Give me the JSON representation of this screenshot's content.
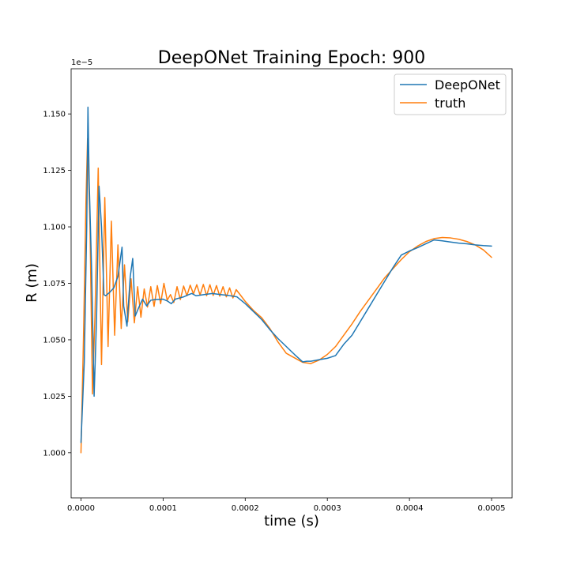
{
  "chart_data": {
    "type": "line",
    "title": "DeepONet Training Epoch: 900",
    "xlabel": "time (s)",
    "ylabel": "R (m)",
    "y_offset_label": "1e−5",
    "xlim": [
      -1.2e-05,
      0.000525
    ],
    "ylim": [
      0.98,
      1.17
    ],
    "x_ticks": [
      0,
      0.0001,
      0.0002,
      0.0003,
      0.0004,
      0.0005
    ],
    "x_tick_labels": [
      "0.0000",
      "0.0001",
      "0.0002",
      "0.0003",
      "0.0004",
      "0.0005"
    ],
    "y_ticks": [
      1.0,
      1.025,
      1.05,
      1.075,
      1.1,
      1.125,
      1.15
    ],
    "y_tick_labels": [
      "1.000",
      "1.025",
      "1.050",
      "1.075",
      "1.100",
      "1.125",
      "1.150"
    ],
    "grid": false,
    "legend_position": "top-right",
    "series": [
      {
        "name": "DeepONet",
        "color": "#1f77b4",
        "x": [
          0,
          4e-06,
          7e-06,
          8.5e-06,
          1e-05,
          1.3e-05,
          1.6e-05,
          1.9e-05,
          2.2e-05,
          2.5e-05,
          2.8e-05,
          3e-05,
          3.5e-05,
          4e-05,
          4.5e-05,
          5e-05,
          5.2e-05,
          5.6e-05,
          6e-05,
          6.3e-05,
          6.6e-05,
          7e-05,
          7.5e-05,
          8e-05,
          8.5e-05,
          9e-05,
          0.0001,
          0.000105,
          0.00011,
          0.000115,
          0.00012,
          0.000125,
          0.00013,
          0.000135,
          0.00014,
          0.00015,
          0.00016,
          0.00017,
          0.00018,
          0.00019,
          0.0002,
          0.00021,
          0.00022,
          0.00023,
          0.00024,
          0.00025,
          0.00026,
          0.00027,
          0.000275,
          0.00028,
          0.00029,
          0.0003,
          0.00031,
          0.00032,
          0.00033,
          0.00034,
          0.00035,
          0.00036,
          0.00037,
          0.00038,
          0.00039,
          0.0004,
          0.00041,
          0.00042,
          0.00043,
          0.00044,
          0.00045,
          0.00046,
          0.00047,
          0.00048,
          0.00049,
          0.0005
        ],
        "values": [
          1.0045,
          1.04,
          1.1,
          1.153,
          1.12,
          1.08,
          1.025,
          1.06,
          1.118,
          1.1,
          1.07,
          1.0695,
          1.071,
          1.073,
          1.078,
          1.091,
          1.065,
          1.056,
          1.078,
          1.086,
          1.0605,
          1.064,
          1.068,
          1.065,
          1.0675,
          1.0678,
          1.068,
          1.0672,
          1.066,
          1.068,
          1.0685,
          1.069,
          1.0698,
          1.0705,
          1.0695,
          1.07,
          1.0705,
          1.07,
          1.0696,
          1.069,
          1.066,
          1.0625,
          1.059,
          1.0545,
          1.0505,
          1.047,
          1.0435,
          1.0402,
          1.0405,
          1.0405,
          1.0412,
          1.0418,
          1.043,
          1.048,
          1.052,
          1.058,
          1.064,
          1.07,
          1.076,
          1.082,
          1.0875,
          1.0893,
          1.0908,
          1.0925,
          1.0942,
          1.0938,
          1.0933,
          1.0928,
          1.0925,
          1.092,
          1.0917,
          1.0915
        ]
      },
      {
        "name": "truth",
        "color": "#ff7f0e",
        "x": [
          0,
          3e-06,
          6e-06,
          8e-06,
          1.1e-05,
          1.4e-05,
          1.7e-05,
          2.1e-05,
          2.5e-05,
          2.9e-05,
          3.3e-05,
          3.7e-05,
          4.1e-05,
          4.5e-05,
          4.9e-05,
          5.3e-05,
          5.7e-05,
          6.1e-05,
          6.5e-05,
          6.9e-05,
          7.3e-05,
          7.7e-05,
          8.1e-05,
          8.5e-05,
          8.9e-05,
          9.3e-05,
          9.7e-05,
          0.000101,
          0.000105,
          0.000109,
          0.000113,
          0.000117,
          0.000121,
          0.000125,
          0.000129,
          0.000133,
          0.000137,
          0.000141,
          0.000145,
          0.000149,
          0.000153,
          0.000157,
          0.000161,
          0.000165,
          0.000169,
          0.000173,
          0.000177,
          0.000181,
          0.000185,
          0.000189,
          0.000195,
          0.0002,
          0.00021,
          0.00022,
          0.00023,
          0.00024,
          0.00025,
          0.00026,
          0.00027,
          0.00028,
          0.00029,
          0.0003,
          0.00031,
          0.00032,
          0.00033,
          0.00034,
          0.00035,
          0.00036,
          0.00037,
          0.00038,
          0.00039,
          0.0004,
          0.00041,
          0.00042,
          0.00043,
          0.00044,
          0.00045,
          0.00046,
          0.00047,
          0.00048,
          0.00049,
          0.0005
        ],
        "values": [
          1.0,
          1.05,
          1.11,
          1.139,
          1.1,
          1.026,
          1.06,
          1.126,
          1.039,
          1.113,
          1.047,
          1.1025,
          1.052,
          1.092,
          1.055,
          1.0832,
          1.058,
          1.077,
          1.0575,
          1.0735,
          1.06,
          1.0725,
          1.0645,
          1.0735,
          1.0648,
          1.074,
          1.066,
          1.075,
          1.0675,
          1.07,
          1.0665,
          1.0735,
          1.0678,
          1.0738,
          1.0695,
          1.0742,
          1.0703,
          1.0744,
          1.0698,
          1.0745,
          1.0695,
          1.0744,
          1.0696,
          1.074,
          1.0693,
          1.0735,
          1.069,
          1.073,
          1.0685,
          1.0722,
          1.0694,
          1.067,
          1.063,
          1.0598,
          1.055,
          1.049,
          1.044,
          1.042,
          1.04,
          1.0395,
          1.041,
          1.0435,
          1.047,
          1.052,
          1.057,
          1.0625,
          1.0675,
          1.0725,
          1.0775,
          1.0815,
          1.0855,
          1.089,
          1.0915,
          1.0935,
          1.0948,
          1.0953,
          1.0951,
          1.0945,
          1.0935,
          1.092,
          1.0898,
          1.0865
        ]
      }
    ]
  }
}
